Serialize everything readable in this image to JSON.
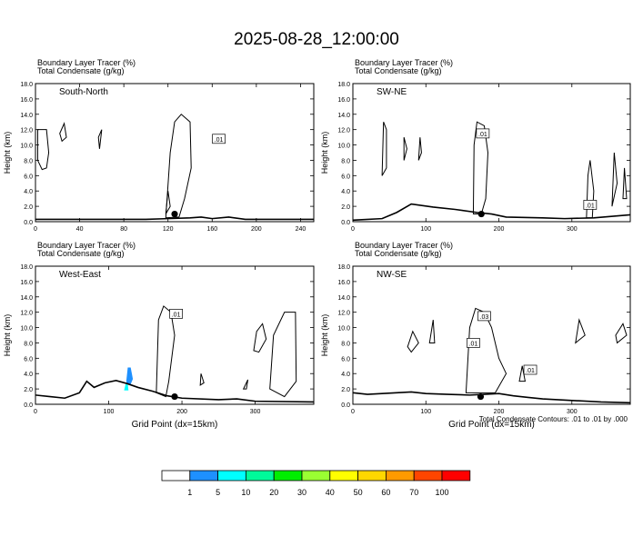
{
  "title": "2025-08-28_12:00:00",
  "contour_note": "Total Condensate Contours: .01 to .01 by .000",
  "chart_data": [
    {
      "type": "contour",
      "panel_label": "South-North",
      "header_lines": [
        "Boundary Layer Tracer   (%)",
        "Total Condensate   (g/kg)"
      ],
      "ylabel": "Height (km)",
      "xlabel": "",
      "xlim": [
        0,
        252
      ],
      "ylim": [
        0,
        18
      ],
      "xticks": [
        0,
        40,
        80,
        120,
        160,
        200,
        240
      ],
      "yticks": [
        "0.0",
        "2.0",
        "4.0",
        "6.0",
        "8.0",
        "10.0",
        "12.0",
        "14.0",
        "16.0",
        "18.0"
      ],
      "terrain": [
        [
          0,
          0.3
        ],
        [
          20,
          0.3
        ],
        [
          60,
          0.3
        ],
        [
          100,
          0.3
        ],
        [
          120,
          0.4
        ],
        [
          140,
          0.5
        ],
        [
          150,
          0.6
        ],
        [
          160,
          0.4
        ],
        [
          175,
          0.6
        ],
        [
          190,
          0.3
        ],
        [
          210,
          0.3
        ],
        [
          252,
          0.3
        ]
      ],
      "condensate_contours": [
        [
          [
            118,
            0.5
          ],
          [
            122,
            9
          ],
          [
            126,
            13
          ],
          [
            132,
            14
          ],
          [
            140,
            13
          ],
          [
            141,
            7
          ],
          [
            135,
            3
          ],
          [
            130,
            0.6
          ]
        ],
        [
          [
            2,
            12
          ],
          [
            10,
            12
          ],
          [
            12,
            9
          ],
          [
            10,
            7
          ],
          [
            6,
            6.8
          ],
          [
            2,
            8
          ]
        ],
        [
          [
            22,
            11.5
          ],
          [
            26,
            12.8
          ],
          [
            28,
            11
          ],
          [
            24,
            10.5
          ]
        ],
        [
          [
            57,
            11
          ],
          [
            60,
            12
          ],
          [
            58,
            9.5
          ]
        ],
        [
          [
            118,
            1
          ],
          [
            120,
            4
          ],
          [
            122,
            2
          ]
        ]
      ],
      "contour_labels": [
        {
          "text": ".01",
          "x": 166,
          "y": 10.8
        }
      ],
      "marker": {
        "x": 126,
        "y": 1.0
      },
      "tracer_blobs": []
    },
    {
      "type": "contour",
      "panel_label": "SW-NE",
      "header_lines": [
        "Boundary Layer Tracer   (%)",
        "Total Condensate   (g/kg)"
      ],
      "ylabel": "Height (km)",
      "xlabel": "",
      "xlim": [
        0,
        380
      ],
      "ylim": [
        0,
        18
      ],
      "xticks": [
        0,
        100,
        200,
        300
      ],
      "yticks": [
        "0.0",
        "2.0",
        "4.0",
        "6.0",
        "8.0",
        "10.0",
        "12.0",
        "14.0",
        "16.0",
        "18.0"
      ],
      "terrain": [
        [
          0,
          0.2
        ],
        [
          40,
          0.4
        ],
        [
          60,
          1.2
        ],
        [
          80,
          2.3
        ],
        [
          110,
          1.9
        ],
        [
          140,
          1.6
        ],
        [
          170,
          1.2
        ],
        [
          190,
          1.0
        ],
        [
          210,
          0.6
        ],
        [
          260,
          0.5
        ],
        [
          290,
          0.4
        ],
        [
          330,
          0.5
        ],
        [
          380,
          0.9
        ]
      ],
      "condensate_contours": [
        [
          [
            165,
            1
          ],
          [
            166,
            10
          ],
          [
            170,
            13
          ],
          [
            180,
            12.5
          ],
          [
            185,
            9
          ],
          [
            182,
            3
          ],
          [
            176,
            1
          ]
        ],
        [
          [
            40,
            6
          ],
          [
            42,
            13
          ],
          [
            46,
            12
          ],
          [
            46,
            7
          ]
        ],
        [
          [
            70,
            8
          ],
          [
            70,
            11
          ],
          [
            74,
            9.5
          ]
        ],
        [
          [
            90,
            8
          ],
          [
            92,
            11
          ],
          [
            94,
            9
          ]
        ],
        [
          [
            320,
            0.5
          ],
          [
            322,
            6
          ],
          [
            325,
            8
          ],
          [
            330,
            4
          ],
          [
            328,
            0.5
          ]
        ],
        [
          [
            355,
            2
          ],
          [
            358,
            9
          ],
          [
            362,
            5
          ]
        ],
        [
          [
            370,
            3
          ],
          [
            372,
            7
          ],
          [
            375,
            3
          ]
        ]
      ],
      "contour_labels": [
        {
          "text": ".01",
          "x": 178,
          "y": 11.5
        },
        {
          "text": ".01",
          "x": 325,
          "y": 2.2
        }
      ],
      "marker": {
        "x": 176,
        "y": 1.0
      },
      "tracer_blobs": []
    },
    {
      "type": "contour",
      "panel_label": "West-East",
      "header_lines": [
        "Boundary Layer Tracer   (%)",
        "Total Condensate   (g/kg)"
      ],
      "ylabel": "Height (km)",
      "xlabel": "Grid Point (dx=15km)",
      "xlim": [
        0,
        380
      ],
      "ylim": [
        0,
        18
      ],
      "xticks": [
        0,
        100,
        200,
        300
      ],
      "yticks": [
        "0.0",
        "2.0",
        "4.0",
        "6.0",
        "8.0",
        "10.0",
        "12.0",
        "14.0",
        "16.0",
        "18.0"
      ],
      "terrain": [
        [
          0,
          1.2
        ],
        [
          20,
          1.0
        ],
        [
          40,
          0.8
        ],
        [
          60,
          1.5
        ],
        [
          70,
          3.0
        ],
        [
          80,
          2.2
        ],
        [
          95,
          2.8
        ],
        [
          110,
          3.1
        ],
        [
          125,
          2.7
        ],
        [
          140,
          2.2
        ],
        [
          160,
          1.7
        ],
        [
          180,
          1.1
        ],
        [
          200,
          0.8
        ],
        [
          250,
          0.6
        ],
        [
          275,
          0.7
        ],
        [
          300,
          0.4
        ],
        [
          380,
          0.3
        ]
      ],
      "condensate_contours": [
        [
          [
            165,
            1.5
          ],
          [
            168,
            11
          ],
          [
            175,
            12.8
          ],
          [
            185,
            12
          ],
          [
            190,
            9
          ],
          [
            182,
            3
          ],
          [
            178,
            1
          ]
        ],
        [
          [
            298,
            7
          ],
          [
            302,
            9.5
          ],
          [
            310,
            10.5
          ],
          [
            315,
            8.5
          ],
          [
            305,
            6.8
          ]
        ],
        [
          [
            320,
            2
          ],
          [
            325,
            9
          ],
          [
            340,
            12
          ],
          [
            355,
            12
          ],
          [
            356,
            3
          ],
          [
            340,
            1
          ]
        ],
        [
          [
            225,
            2.5
          ],
          [
            226,
            4
          ],
          [
            230,
            2.8
          ]
        ],
        [
          [
            284,
            2
          ],
          [
            290,
            3.2
          ],
          [
            288,
            2
          ]
        ]
      ],
      "contour_labels": [
        {
          "text": ".01",
          "x": 192,
          "y": 11.8
        }
      ],
      "marker": {
        "x": 190,
        "y": 1.0
      },
      "tracer_blobs": [
        {
          "level": 5,
          "points": [
            [
              124,
              3.0
            ],
            [
              126,
              4.8
            ],
            [
              130,
              4.8
            ],
            [
              133,
              3.3
            ],
            [
              130,
              2.6
            ],
            [
              125,
              2.6
            ]
          ]
        },
        {
          "level": 10,
          "points": [
            [
              121,
              1.8
            ],
            [
              123,
              2.6
            ],
            [
              126,
              2.6
            ],
            [
              127,
              1.8
            ]
          ]
        }
      ]
    },
    {
      "type": "contour",
      "panel_label": "NW-SE",
      "header_lines": [
        "Boundary Layer Tracer   (%)",
        "Total Condensate   (g/kg)"
      ],
      "ylabel": "Height (km)",
      "xlabel": "Grid Point (dx=15km)",
      "xlim": [
        0,
        380
      ],
      "ylim": [
        0,
        18
      ],
      "xticks": [
        0,
        100,
        200,
        300
      ],
      "yticks": [
        "0.0",
        "2.0",
        "4.0",
        "6.0",
        "8.0",
        "10.0",
        "12.0",
        "14.0",
        "16.0",
        "18.0"
      ],
      "terrain": [
        [
          0,
          1.5
        ],
        [
          20,
          1.3
        ],
        [
          40,
          1.4
        ],
        [
          60,
          1.5
        ],
        [
          80,
          1.6
        ],
        [
          100,
          1.4
        ],
        [
          130,
          1.3
        ],
        [
          160,
          1.2
        ],
        [
          180,
          1.3
        ],
        [
          200,
          1.4
        ],
        [
          220,
          1.1
        ],
        [
          240,
          0.9
        ],
        [
          260,
          0.7
        ],
        [
          300,
          0.5
        ],
        [
          340,
          0.3
        ],
        [
          380,
          0.2
        ]
      ],
      "condensate_contours": [
        [
          [
            155,
            1.5
          ],
          [
            160,
            10
          ],
          [
            168,
            12.5
          ],
          [
            180,
            12
          ],
          [
            190,
            10
          ],
          [
            200,
            6
          ],
          [
            210,
            4
          ],
          [
            195,
            1.5
          ]
        ],
        [
          [
            75,
            7.5
          ],
          [
            82,
            9.5
          ],
          [
            90,
            8
          ],
          [
            80,
            6.8
          ]
        ],
        [
          [
            105,
            8
          ],
          [
            110,
            11
          ],
          [
            112,
            8
          ]
        ],
        [
          [
            305,
            8
          ],
          [
            310,
            11
          ],
          [
            318,
            9
          ]
        ],
        [
          [
            360,
            9
          ],
          [
            370,
            10.5
          ],
          [
            375,
            9
          ],
          [
            362,
            8
          ]
        ],
        [
          [
            228,
            3
          ],
          [
            232,
            5
          ],
          [
            236,
            3
          ]
        ]
      ],
      "contour_labels": [
        {
          "text": ".03",
          "x": 180,
          "y": 11.5
        },
        {
          "text": ".01",
          "x": 165,
          "y": 8.0
        },
        {
          "text": ".01",
          "x": 243,
          "y": 4.5
        }
      ],
      "marker": {
        "x": 175,
        "y": 1.0
      },
      "tracer_blobs": []
    }
  ],
  "colorbar": {
    "labels": [
      "1",
      "5",
      "10",
      "20",
      "30",
      "40",
      "50",
      "60",
      "70",
      "100"
    ],
    "colors": [
      "#ffffff",
      "#1e90ff",
      "#00ffff",
      "#00fa9a",
      "#00ee00",
      "#9aff32",
      "#ffff00",
      "#ffd700",
      "#ff9a00",
      "#ff4500",
      "#ff0000"
    ]
  }
}
